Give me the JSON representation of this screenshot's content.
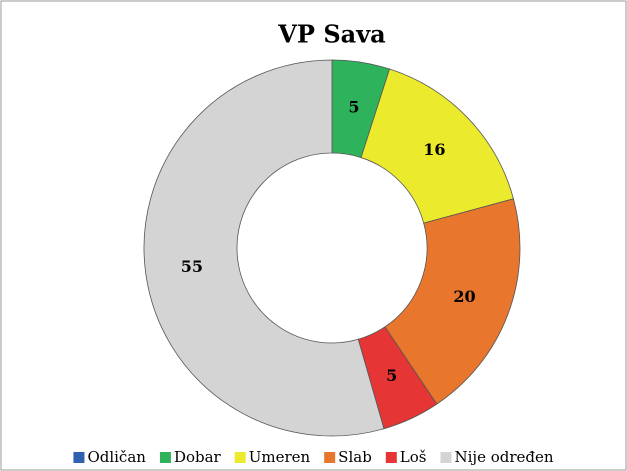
{
  "chart_data": {
    "type": "donut",
    "title": "VP Sava",
    "categories": [
      "Odličan",
      "Dobar",
      "Umeren",
      "Slab",
      "Loš",
      "Nije određen"
    ],
    "values": [
      0,
      5,
      16,
      20,
      5,
      55
    ],
    "colors": [
      "#2e62b0",
      "#2fb25c",
      "#ecea2c",
      "#e8762c",
      "#e63535",
      "#d4d4d4"
    ]
  }
}
